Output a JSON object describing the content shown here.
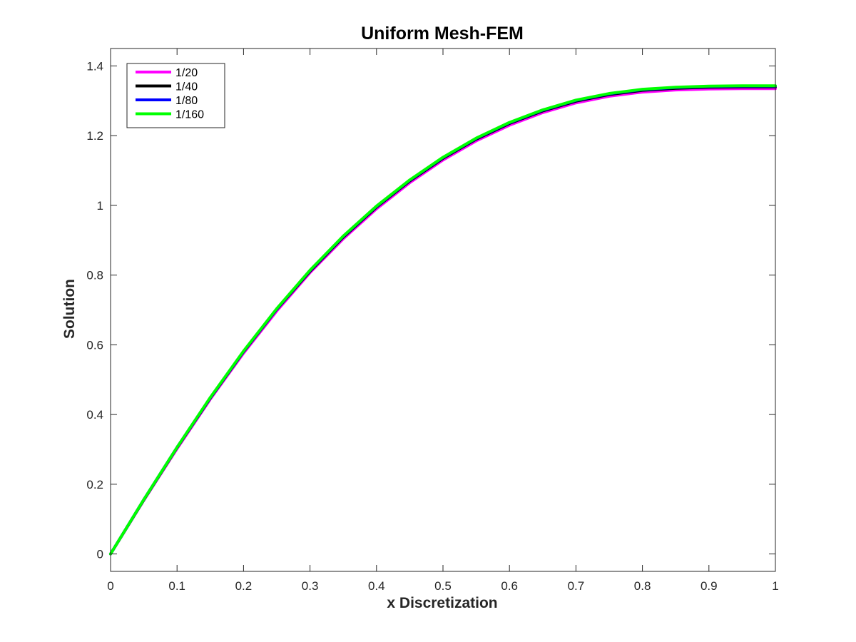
{
  "chart_data": {
    "type": "line",
    "title": "Uniform Mesh-FEM",
    "xlabel": "x Discretization",
    "ylabel": "Solution",
    "xlim": [
      0,
      1
    ],
    "ylim": [
      -0.05,
      1.45
    ],
    "xticks": [
      0,
      0.1,
      0.2,
      0.3,
      0.4,
      0.5,
      0.6,
      0.7,
      0.8,
      0.9,
      1
    ],
    "xtick_labels": [
      "0",
      "0.1",
      "0.2",
      "0.3",
      "0.4",
      "0.5",
      "0.6",
      "0.7",
      "0.8",
      "0.9",
      "1"
    ],
    "yticks": [
      0,
      0.2,
      0.4,
      0.6,
      0.8,
      1,
      1.2,
      1.4
    ],
    "ytick_labels": [
      "0",
      "0.2",
      "0.4",
      "0.6",
      "0.8",
      "1",
      "1.2",
      "1.4"
    ],
    "grid": false,
    "legend_position": "top-left",
    "x": [
      0,
      0.05,
      0.1,
      0.15,
      0.2,
      0.25,
      0.3,
      0.35,
      0.4,
      0.45,
      0.5,
      0.55,
      0.6,
      0.65,
      0.7,
      0.75,
      0.8,
      0.85,
      0.9,
      0.95,
      1.0
    ],
    "series": [
      {
        "name": "1/20",
        "color": "#ff00ff",
        "values": [
          0,
          0.154,
          0.302,
          0.444,
          0.576,
          0.697,
          0.807,
          0.904,
          0.99,
          1.065,
          1.13,
          1.185,
          1.23,
          1.266,
          1.294,
          1.313,
          1.325,
          1.331,
          1.334,
          1.335,
          1.335
        ]
      },
      {
        "name": "1/40",
        "color": "#000000",
        "values": [
          0,
          0.155,
          0.305,
          0.447,
          0.58,
          0.702,
          0.811,
          0.909,
          0.995,
          1.07,
          1.135,
          1.19,
          1.235,
          1.271,
          1.299,
          1.318,
          1.33,
          1.336,
          1.339,
          1.34,
          1.34
        ]
      },
      {
        "name": "1/80",
        "color": "#0000ff",
        "values": [
          0,
          0.156,
          0.306,
          0.448,
          0.581,
          0.703,
          0.813,
          0.911,
          0.997,
          1.072,
          1.137,
          1.192,
          1.237,
          1.273,
          1.301,
          1.32,
          1.332,
          1.338,
          1.341,
          1.342,
          1.342
        ]
      },
      {
        "name": "1/160",
        "color": "#00ff00",
        "values": [
          0,
          0.156,
          0.306,
          0.449,
          0.582,
          0.704,
          0.814,
          0.912,
          0.998,
          1.073,
          1.138,
          1.193,
          1.238,
          1.274,
          1.302,
          1.321,
          1.333,
          1.339,
          1.342,
          1.343,
          1.343
        ]
      }
    ]
  }
}
